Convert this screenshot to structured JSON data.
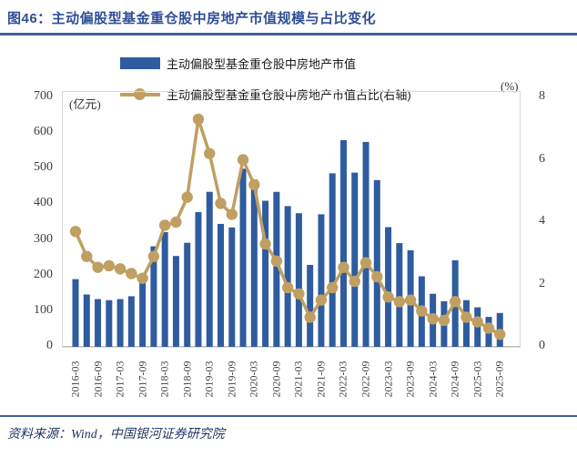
{
  "title": "图46：主动偏股型基金重仓股中房地产市值规模与占比变化",
  "legend": {
    "bar_label": "主动偏股型基金重仓股中房地产市值",
    "line_label": "主动偏股型基金重仓股中房地产市值占比(右轴)"
  },
  "axes": {
    "left_unit": "(亿元)",
    "right_unit": "(%)",
    "left_ticks": [
      0,
      100,
      200,
      300,
      400,
      500,
      600,
      700
    ],
    "right_ticks": [
      0,
      2,
      4,
      6,
      8
    ]
  },
  "source": "资料来源：Wind，中国银河证券研究院",
  "colors": {
    "bar": "#2e5c9e",
    "line": "#c09f63",
    "title": "#2e4e96",
    "rule": "#3f5f9f",
    "source_text": "#203864",
    "axis_text": "#404040"
  },
  "chart_data": {
    "type": "bar+line (dual axis)",
    "title": "主动偏股型基金重仓股中房地产市值规模与占比变化",
    "categories": [
      "2016-03",
      "2016-06",
      "2016-09",
      "2016-12",
      "2017-03",
      "2017-06",
      "2017-09",
      "2017-12",
      "2018-03",
      "2018-06",
      "2018-09",
      "2018-12",
      "2019-03",
      "2019-06",
      "2019-09",
      "2019-12",
      "2020-03",
      "2020-06",
      "2020-09",
      "2020-12",
      "2021-03",
      "2021-06",
      "2021-09",
      "2021-12",
      "2022-03",
      "2022-06",
      "2022-09",
      "2022-12",
      "2023-03",
      "2023-06",
      "2023-09",
      "2023-12",
      "2024-03",
      "2024-06",
      "2024-09",
      "2024-12",
      "2025-03",
      "2025-06",
      "2025-09"
    ],
    "x_tick_labels": [
      "2016-03",
      "2016-09",
      "2017-03",
      "2017-09",
      "2018-03",
      "2018-09",
      "2019-03",
      "2019-09",
      "2020-03",
      "2020-09",
      "2021-03",
      "2021-09",
      "2022-03",
      "2022-09",
      "2023-03",
      "2023-09",
      "2024-03",
      "2024-09",
      "2025-03",
      "2025-09"
    ],
    "series": [
      {
        "name": "主动偏股型基金重仓股中房地产市值",
        "type": "bar",
        "axis": "left",
        "unit": "亿元",
        "values": [
          190,
          147,
          134,
          131,
          134,
          142,
          200,
          282,
          322,
          255,
          292,
          378,
          435,
          345,
          335,
          500,
          470,
          410,
          435,
          395,
          375,
          230,
          372,
          487,
          580,
          489,
          575,
          468,
          336,
          291,
          271,
          198,
          149,
          128,
          243,
          131,
          111,
          84,
          95
        ]
      },
      {
        "name": "主动偏股型基金重仓股中房地产市值占比(右轴)",
        "type": "line",
        "axis": "right",
        "unit": "%",
        "values": [
          3.7,
          2.9,
          2.55,
          2.6,
          2.5,
          2.35,
          2.2,
          2.9,
          3.9,
          4.0,
          4.8,
          7.3,
          6.2,
          4.6,
          4.25,
          6.0,
          5.2,
          3.3,
          2.75,
          1.9,
          1.7,
          0.95,
          1.5,
          1.9,
          2.55,
          2.1,
          2.7,
          2.25,
          1.6,
          1.45,
          1.5,
          1.15,
          0.9,
          0.85,
          1.45,
          0.95,
          0.8,
          0.6,
          0.4
        ]
      }
    ],
    "left_ylim": [
      0,
      700
    ],
    "right_ylim": [
      0,
      8
    ],
    "grid": false,
    "legend_position": "top"
  }
}
